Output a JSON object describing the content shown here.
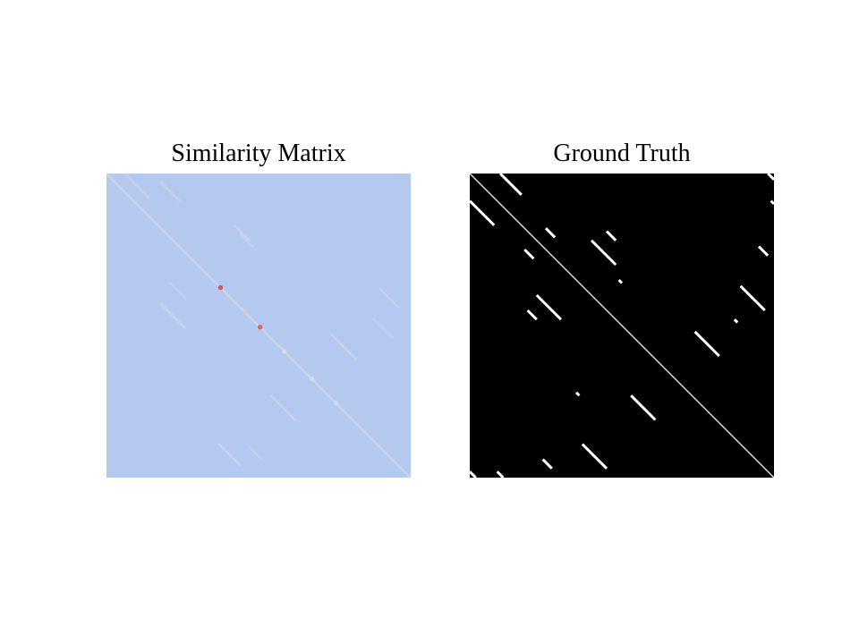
{
  "figure": {
    "panels": [
      {
        "title": "Similarity Matrix"
      },
      {
        "title": "Ground Truth"
      }
    ]
  },
  "chart_data": [
    {
      "type": "heatmap",
      "title": "Similarity Matrix",
      "xlabel": "",
      "ylabel": "",
      "matrix_size": 100,
      "value_range": [
        0,
        1
      ],
      "colormap": {
        "low": "#a9c3f3",
        "mid": "#d8dbe4",
        "high": "#d23a2a"
      },
      "grid": false,
      "background_value": 0.12,
      "diagonal_value": 0.35,
      "streaks": [
        {
          "start": [
            0,
            6
          ],
          "length": 8,
          "value": 0.3
        },
        {
          "start": [
            3,
            18
          ],
          "length": 6,
          "value": 0.28
        },
        {
          "start": [
            17,
            42
          ],
          "length": 5,
          "value": 0.3
        },
        {
          "start": [
            20,
            44
          ],
          "length": 4,
          "value": 0.3
        },
        {
          "start": [
            43,
            18
          ],
          "length": 8,
          "value": 0.3
        },
        {
          "start": [
            36,
            21
          ],
          "length": 5,
          "value": 0.25
        },
        {
          "start": [
            38,
            90
          ],
          "length": 6,
          "value": 0.3
        },
        {
          "start": [
            53,
            74
          ],
          "length": 8,
          "value": 0.32
        },
        {
          "start": [
            48,
            88
          ],
          "length": 6,
          "value": 0.25
        },
        {
          "start": [
            73,
            54
          ],
          "length": 8,
          "value": 0.32
        },
        {
          "start": [
            89,
            37
          ],
          "length": 7,
          "value": 0.32
        },
        {
          "start": [
            90,
            47
          ],
          "length": 4,
          "value": 0.25
        }
      ],
      "hotspots": [
        {
          "row": 37,
          "col": 37,
          "value": 0.9
        },
        {
          "row": 45,
          "col": 45,
          "value": 0.55
        },
        {
          "row": 50,
          "col": 50,
          "value": 0.85
        },
        {
          "row": 58,
          "col": 58,
          "value": 0.5
        },
        {
          "row": 67,
          "col": 67,
          "value": 0.45
        },
        {
          "row": 75,
          "col": 75,
          "value": 0.45
        }
      ]
    },
    {
      "type": "heatmap",
      "title": "Ground Truth",
      "xlabel": "",
      "ylabel": "",
      "matrix_size": 100,
      "value_range": [
        0,
        1
      ],
      "colormap": {
        "0": "#000000",
        "1": "#ffffff"
      },
      "grid": false,
      "main_diagonal": true,
      "segments": [
        {
          "start": [
            0,
            0
          ],
          "length": 100
        },
        {
          "start": [
            0,
            10
          ],
          "length": 7
        },
        {
          "start": [
            9,
            0
          ],
          "length": 8
        },
        {
          "start": [
            18,
            25
          ],
          "length": 3
        },
        {
          "start": [
            22,
            40
          ],
          "length": 8
        },
        {
          "start": [
            19,
            45
          ],
          "length": 3
        },
        {
          "start": [
            25,
            18
          ],
          "length": 3
        },
        {
          "start": [
            40,
            22
          ],
          "length": 8
        },
        {
          "start": [
            45,
            19
          ],
          "length": 3
        },
        {
          "start": [
            0,
            98
          ],
          "length": 2
        },
        {
          "start": [
            9,
            99
          ],
          "length": 1
        },
        {
          "start": [
            24,
            95
          ],
          "length": 3
        },
        {
          "start": [
            37,
            89
          ],
          "length": 8
        },
        {
          "start": [
            52,
            74
          ],
          "length": 8
        },
        {
          "start": [
            73,
            53
          ],
          "length": 8
        },
        {
          "start": [
            89,
            37
          ],
          "length": 8
        },
        {
          "start": [
            98,
            0
          ],
          "length": 2
        },
        {
          "start": [
            98,
            9
          ],
          "length": 2
        },
        {
          "start": [
            94,
            24
          ],
          "length": 3
        },
        {
          "start": [
            48,
            87
          ],
          "length": 1
        },
        {
          "start": [
            35,
            49
          ],
          "length": 1
        },
        {
          "start": [
            72,
            35
          ],
          "length": 1
        }
      ]
    }
  ]
}
